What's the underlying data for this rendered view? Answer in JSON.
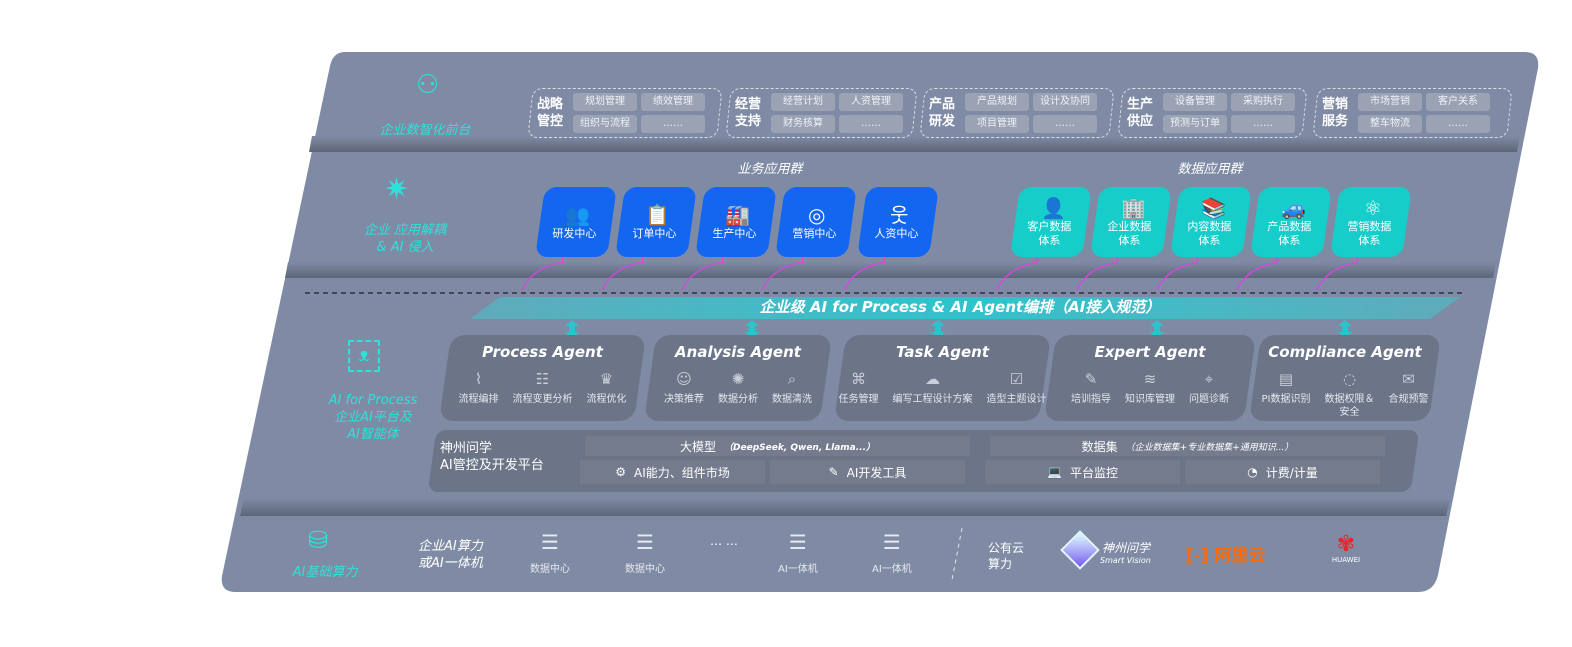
{
  "layers": {
    "front": "企业数智化前台",
    "app": "企业 应用解耦\n& AI 侵入",
    "ai": "AI for Process\n企业AI平台及\nAI智能体",
    "compute": "AI基础算力"
  },
  "front_groups": [
    {
      "title": "战略\n管控",
      "items": [
        "规划管理",
        "绩效管理",
        "组织与流程",
        "……"
      ]
    },
    {
      "title": "经营\n支持",
      "items": [
        "经营计划",
        "人资管理",
        "财务核算",
        "……"
      ]
    },
    {
      "title": "产品\n研发",
      "items": [
        "产品规划",
        "设计及协同",
        "项目管理",
        "……"
      ]
    },
    {
      "title": "生产\n供应",
      "items": [
        "设备管理",
        "采购执行",
        "预测与订单",
        "……"
      ]
    },
    {
      "title": "营销\n服务",
      "items": [
        "市场营销",
        "客户关系",
        "整车物流",
        "……"
      ]
    }
  ],
  "business_apps": {
    "title": "业务应用群",
    "items": [
      {
        "label": "研发中心",
        "icon": "users-icon"
      },
      {
        "label": "订单中心",
        "icon": "clipboard-icon"
      },
      {
        "label": "生产中心",
        "icon": "factory-icon"
      },
      {
        "label": "营销中心",
        "icon": "target-icon"
      },
      {
        "label": "人资中心",
        "icon": "person-icon"
      }
    ]
  },
  "data_apps": {
    "title": "数据应用群",
    "items": [
      {
        "label": "客户数据\n体系",
        "icon": "user-icon"
      },
      {
        "label": "企业数据\n体系",
        "icon": "building-icon"
      },
      {
        "label": "内容数据\n体系",
        "icon": "books-icon"
      },
      {
        "label": "产品数据\n体系",
        "icon": "car-icon"
      },
      {
        "label": "营销数据\n体系",
        "icon": "atom-icon"
      }
    ]
  },
  "banner": "企业级 AI for Process & AI Agent编排（AI接入规范）",
  "agents": [
    {
      "name": "Process Agent",
      "features": [
        "流程编排",
        "流程变更分析",
        "流程优化"
      ]
    },
    {
      "name": "Analysis Agent",
      "features": [
        "决策推荐",
        "数据分析",
        "数据清洗"
      ]
    },
    {
      "name": "Task Agent",
      "features": [
        "任务管理",
        "编写工程设计方案",
        "造型主题设计"
      ]
    },
    {
      "name": "Expert Agent",
      "features": [
        "培训指导",
        "知识库管理",
        "问题诊断"
      ]
    },
    {
      "name": "Compliance Agent",
      "features": [
        "PI数据识别",
        "数据权限＆\n安全",
        "合规预警"
      ]
    }
  ],
  "platform": {
    "title": "神州问学\nAI管控及开发平台",
    "model": "大模型",
    "model_note": "（DeepSeek, Qwen, Llama...）",
    "dataset": "数据集",
    "dataset_note": "（企业数据集+专业数据集+通用知识...）",
    "tools": [
      "AI能力、组件市场",
      "AI开发工具",
      "平台监控",
      "计费/计量"
    ]
  },
  "compute": {
    "private_label": "企业AI算力\n或AI一体机",
    "nodes": [
      "数据中心",
      "数据中心",
      "AI一体机",
      "AI一体机"
    ],
    "ellipsis": "… …",
    "public_label": "公有云\n算力",
    "vendors": {
      "sv_cn": "神州问学",
      "sv_en": "Smart Vision",
      "aliyun": "阿里云",
      "huawei": "HUAWEI"
    }
  },
  "colors": {
    "panel": "#7f8ba5",
    "blue": "#1366f0",
    "cyan": "#17cdc9",
    "teal_text": "#2fe0d8",
    "arrow": "#e040e8",
    "aliyun": "#ff6a00",
    "huawei": "#e8262a"
  }
}
